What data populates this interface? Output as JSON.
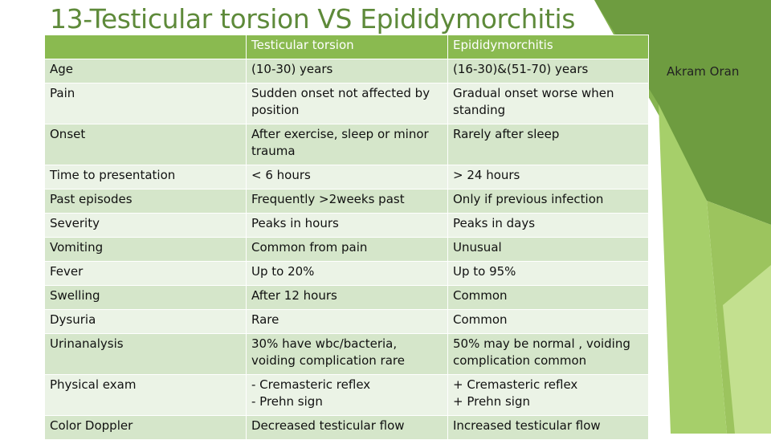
{
  "slide": {
    "title": "13-Testicular torsion VS Epididymorchitis",
    "author": "Akram Oran"
  },
  "table": {
    "headers": [
      "",
      "Testicular torsion",
      "Epididymorchitis"
    ],
    "rows": [
      [
        "Age",
        "(10-30) years",
        "(16-30)&(51-70) years"
      ],
      [
        "Pain",
        "Sudden onset not affected by position",
        "Gradual onset worse when standing"
      ],
      [
        "Onset",
        "After exercise, sleep or minor trauma",
        "Rarely after sleep"
      ],
      [
        "Time to presentation",
        "< 6 hours",
        "> 24 hours"
      ],
      [
        "Past episodes",
        "Frequently >2weeks past",
        "Only if previous infection"
      ],
      [
        "Severity",
        "Peaks in hours",
        "Peaks in days"
      ],
      [
        "Vomiting",
        "Common from pain",
        "Unusual"
      ],
      [
        "Fever",
        "Up to 20%",
        "Up to 95%"
      ],
      [
        "Swelling",
        "After 12 hours",
        "Common"
      ],
      [
        "Dysuria",
        "Rare",
        "Common"
      ],
      [
        "Urinanalysis",
        "30% have wbc/bacteria, voiding complication rare",
        "50% may be normal , voiding complication common"
      ],
      [
        "Physical exam",
        "- Cremasteric reflex\n- Prehn sign",
        "+ Cremasteric reflex\n+ Prehn sign"
      ],
      [
        "Color Doppler",
        "Decreased testicular flow",
        "Increased testicular flow"
      ]
    ]
  },
  "colors": {
    "title": "#5e8a3a",
    "header_bg": "#8aba50",
    "row_dark": "#d5e6ca",
    "row_light": "#ebf3e6",
    "deco_greens": [
      "#6e9c40",
      "#86b450",
      "#a6cf6a",
      "#c3e08f",
      "#9cc45e"
    ]
  }
}
